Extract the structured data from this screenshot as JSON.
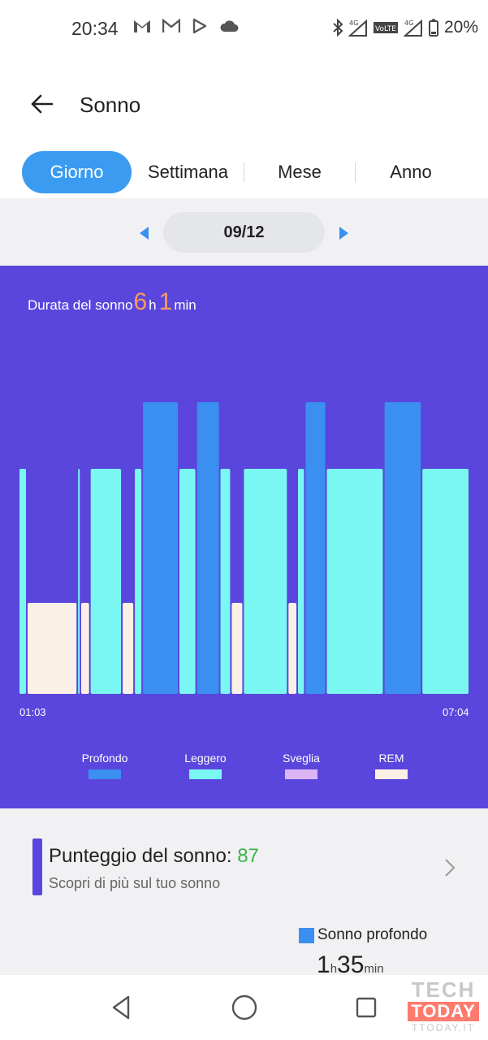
{
  "status_bar": {
    "time": "20:34",
    "battery": "20%",
    "left_icons": [
      "gmail-icon",
      "gmail-icon",
      "play-store-icon",
      "cloud-icon"
    ],
    "right_icons": [
      "bluetooth-icon",
      "signal-4g-icon",
      "volte-icon",
      "signal-4g-icon",
      "battery-icon"
    ]
  },
  "header": {
    "title": "Sonno",
    "back_icon": "back-arrow-icon"
  },
  "tabs": [
    {
      "label": "Giorno",
      "active": true
    },
    {
      "label": "Settimana",
      "active": false
    },
    {
      "label": "Mese",
      "active": false
    },
    {
      "label": "Anno",
      "active": false
    }
  ],
  "date_nav": {
    "date": "09/12"
  },
  "sleep_summary": {
    "label": "Durata del sonno",
    "hours": "6",
    "hours_unit": "h",
    "minutes": "1",
    "minutes_unit": "min"
  },
  "chart_data": {
    "type": "bar",
    "x_start_label": "01:03",
    "x_end_label": "07:04",
    "stage_levels": {
      "Profondo": 3,
      "Leggero": 2,
      "Sveglia": 0,
      "REM": 1
    },
    "segments": [
      {
        "stage": "Leggero",
        "start": 0.0,
        "end": 0.018
      },
      {
        "stage": "REM",
        "start": 0.018,
        "end": 0.13
      },
      {
        "stage": "Leggero",
        "start": 0.13,
        "end": 0.137
      },
      {
        "stage": "REM",
        "start": 0.137,
        "end": 0.158
      },
      {
        "stage": "Leggero",
        "start": 0.158,
        "end": 0.229
      },
      {
        "stage": "REM",
        "start": 0.229,
        "end": 0.256
      },
      {
        "stage": "Leggero",
        "start": 0.256,
        "end": 0.274
      },
      {
        "stage": "Profondo",
        "start": 0.274,
        "end": 0.355
      },
      {
        "stage": "Leggero",
        "start": 0.355,
        "end": 0.394
      },
      {
        "stage": "Profondo",
        "start": 0.394,
        "end": 0.446
      },
      {
        "stage": "Leggero",
        "start": 0.446,
        "end": 0.471
      },
      {
        "stage": "REM",
        "start": 0.471,
        "end": 0.498
      },
      {
        "stage": "Leggero",
        "start": 0.498,
        "end": 0.597
      },
      {
        "stage": "REM",
        "start": 0.597,
        "end": 0.618
      },
      {
        "stage": "Leggero",
        "start": 0.618,
        "end": 0.635
      },
      {
        "stage": "Profondo",
        "start": 0.635,
        "end": 0.682
      },
      {
        "stage": "Leggero",
        "start": 0.682,
        "end": 0.81
      },
      {
        "stage": "Profondo",
        "start": 0.81,
        "end": 0.894
      },
      {
        "stage": "Leggero",
        "start": 0.894,
        "end": 1.0
      }
    ],
    "legend": [
      {
        "name": "Profondo",
        "color": "#3a8ff0"
      },
      {
        "name": "Leggero",
        "color": "#7af7f2"
      },
      {
        "name": "Sveglia",
        "color": "#dcb6f4"
      },
      {
        "name": "REM",
        "color": "#fbf0e6"
      }
    ]
  },
  "sleep_score": {
    "title": "Punteggio del sonno: ",
    "value": "87",
    "subtitle": "Scopri di più sul tuo sonno"
  },
  "deep_sleep": {
    "label": "Sonno profondo",
    "hours": "1",
    "hours_unit": "h",
    "minutes": "35",
    "minutes_unit": "min"
  },
  "nav_bar": {
    "icons": [
      "back-triangle-icon",
      "home-circle-icon",
      "recents-square-icon"
    ]
  },
  "watermark": {
    "line1": "TECH",
    "line2": "TODAY",
    "line3": "TTODAY.IT"
  },
  "colors": {
    "panel_bg": "#5a46dc",
    "accent_blue": "#3a9bf0",
    "duration_orange": "#ff9a5c",
    "score_green": "#39b54a"
  }
}
